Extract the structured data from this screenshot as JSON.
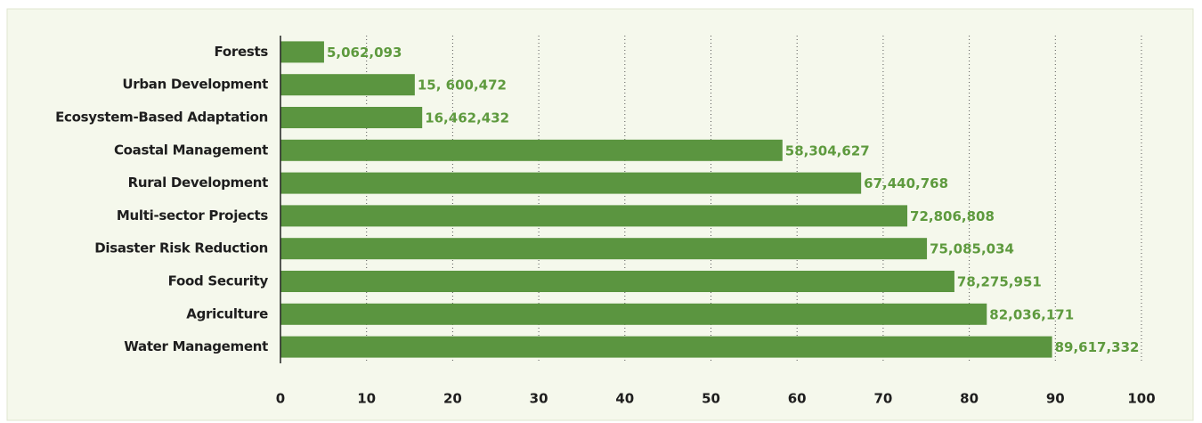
{
  "chart_data": {
    "type": "bar",
    "orientation": "horizontal",
    "categories": [
      "Forests",
      "Urban Development",
      "Ecosystem-Based Adaptation",
      "Coastal Management",
      "Rural Development",
      "Multi-sector Projects",
      "Disaster Risk Reduction",
      "Food Security",
      "Agriculture",
      "Water Management"
    ],
    "values": [
      5.062093,
      15.600472,
      16.462432,
      58.304627,
      67.440768,
      72.806808,
      75.085034,
      78.275951,
      82.036171,
      89.617332
    ],
    "value_labels": [
      "5,062,093",
      "15, 600,472",
      "16,462,432",
      "58,304,627",
      "67,440,768",
      "72,806,808",
      "75,085,034",
      "78,275,951",
      "82,036,171",
      "89,617,332"
    ],
    "color": "#5b9540",
    "xlim": [
      0,
      100
    ],
    "xticks": [
      0,
      10,
      20,
      30,
      40,
      50,
      60,
      70,
      80,
      90,
      100
    ],
    "grid": true
  }
}
